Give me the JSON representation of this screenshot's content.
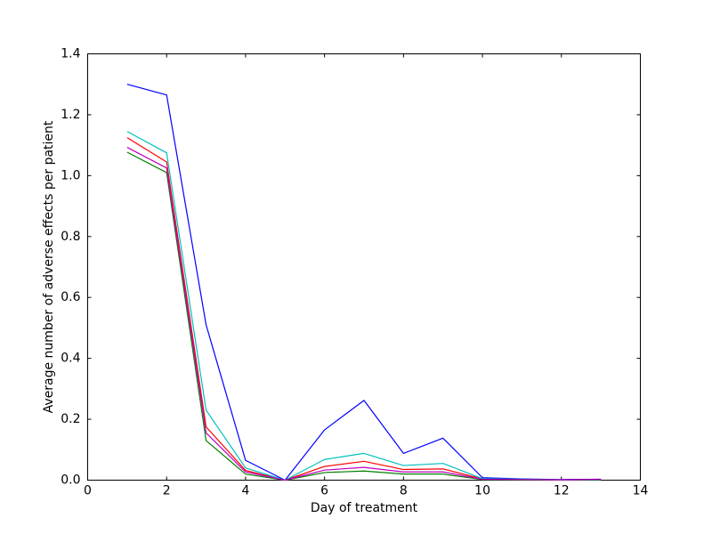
{
  "chart_data": {
    "type": "line",
    "xlabel": "Day of treatment",
    "ylabel": "Average number of adverse effects per patient",
    "x": [
      1,
      2,
      3,
      4,
      5,
      6,
      7,
      8,
      9,
      10,
      11,
      12,
      13
    ],
    "series": [
      {
        "color": "#0000ff",
        "values": [
          1.3,
          1.265,
          0.51,
          0.065,
          0.0,
          0.165,
          0.262,
          0.088,
          0.138,
          0.008,
          0.004,
          0.002,
          0.003
        ]
      },
      {
        "color": "#008000",
        "values": [
          1.077,
          1.01,
          0.13,
          0.02,
          0.0,
          0.025,
          0.03,
          0.02,
          0.02,
          0.002,
          0.001,
          0.0005,
          0.001
        ]
      },
      {
        "color": "#ff0000",
        "values": [
          1.125,
          1.045,
          0.175,
          0.032,
          0.0,
          0.045,
          0.062,
          0.035,
          0.037,
          0.004,
          0.002,
          0.001,
          0.002
        ]
      },
      {
        "color": "#00bfbf",
        "values": [
          1.145,
          1.075,
          0.23,
          0.04,
          0.0,
          0.068,
          0.088,
          0.048,
          0.055,
          0.005,
          0.003,
          0.001,
          0.002
        ]
      },
      {
        "color": "#bf00bf",
        "values": [
          1.093,
          1.025,
          0.155,
          0.027,
          0.0,
          0.033,
          0.042,
          0.027,
          0.027,
          0.003,
          0.002,
          0.001,
          0.003
        ]
      }
    ],
    "xlim": [
      0,
      14
    ],
    "xticks": [
      0,
      2,
      4,
      6,
      8,
      10,
      12,
      14
    ],
    "ylim": [
      0,
      1.4
    ],
    "yticks": [
      {
        "value": 0,
        "label": "0.0"
      },
      0.2,
      0.4,
      0.6,
      0.8,
      {
        "value": 1,
        "label": "1.0"
      },
      1.2,
      1.4
    ],
    "grid": false
  }
}
